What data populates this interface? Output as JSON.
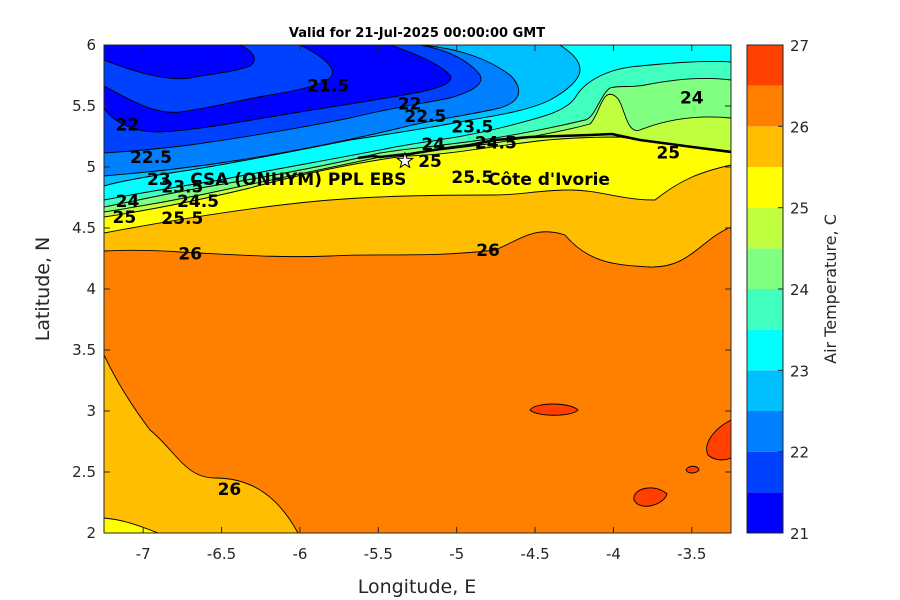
{
  "chart_data": {
    "type": "heatmap",
    "title": "Valid for 21-Jul-2025 00:00:00 GMT",
    "xlabel": "Longitude, E",
    "ylabel": "Latitude, N",
    "xlim": [
      -7.25,
      -3.25
    ],
    "ylim": [
      2,
      6
    ],
    "xticks": [
      "-7",
      "-6.5",
      "-6",
      "-5.5",
      "-5",
      "-4.5",
      "-4",
      "-3.5"
    ],
    "xtick_values": [
      -7,
      -6.5,
      -6,
      -5.5,
      -5,
      -4.5,
      -4,
      -3.5
    ],
    "yticks": [
      "2",
      "2.5",
      "3",
      "3.5",
      "4",
      "4.5",
      "5",
      "5.5",
      "6"
    ],
    "ytick_values": [
      2,
      2.5,
      3,
      3.5,
      4,
      4.5,
      5,
      5.5,
      6
    ],
    "colorbar": {
      "label": "Air Temperature, C",
      "range": [
        21,
        27
      ],
      "ticks": [
        "21",
        "22",
        "23",
        "24",
        "25",
        "26",
        "27"
      ],
      "tick_values": [
        21,
        22,
        23,
        24,
        25,
        26,
        27
      ],
      "levels": [
        21,
        21.5,
        22,
        22.5,
        23,
        23.5,
        24,
        24.5,
        25,
        25.5,
        26,
        26.5,
        27
      ],
      "colors": [
        "#0000ff",
        "#0040ff",
        "#0080ff",
        "#00bfff",
        "#00ffff",
        "#40ffbf",
        "#80ff80",
        "#bfff40",
        "#ffff00",
        "#ffbf00",
        "#ff8000",
        "#ff4000"
      ]
    },
    "contour_labels": [
      {
        "text": "21.5",
        "lon": -5.82,
        "lat": 5.67
      },
      {
        "text": "22",
        "lon": -7.1,
        "lat": 5.35
      },
      {
        "text": "22",
        "lon": -5.3,
        "lat": 5.52
      },
      {
        "text": "22.5",
        "lon": -5.2,
        "lat": 5.42
      },
      {
        "text": "22.5",
        "lon": -6.95,
        "lat": 5.08
      },
      {
        "text": "23.5",
        "lon": -4.9,
        "lat": 5.33
      },
      {
        "text": "24",
        "lon": -3.5,
        "lat": 5.57
      },
      {
        "text": "24",
        "lon": -5.15,
        "lat": 5.19
      },
      {
        "text": "24.5",
        "lon": -4.75,
        "lat": 5.2
      },
      {
        "text": "25",
        "lon": -5.17,
        "lat": 5.05
      },
      {
        "text": "25",
        "lon": -3.65,
        "lat": 5.12
      },
      {
        "text": "25.5",
        "lon": -4.9,
        "lat": 4.92
      },
      {
        "text": "23",
        "lon": -6.9,
        "lat": 4.9
      },
      {
        "text": "23.5",
        "lon": -6.75,
        "lat": 4.84
      },
      {
        "text": "24",
        "lon": -7.1,
        "lat": 4.72
      },
      {
        "text": "24.5",
        "lon": -6.65,
        "lat": 4.72
      },
      {
        "text": "25",
        "lon": -7.12,
        "lat": 4.59
      },
      {
        "text": "25.5",
        "lon": -6.75,
        "lat": 4.58
      },
      {
        "text": "26",
        "lon": -6.7,
        "lat": 4.29
      },
      {
        "text": "26",
        "lon": -4.8,
        "lat": 4.32
      },
      {
        "text": "26",
        "lon": -6.45,
        "lat": 2.36
      }
    ],
    "annotations": [
      {
        "text": "CSA (ONHYM) PPL EBS",
        "lon": -6.7,
        "lat": 4.9
      },
      {
        "text": "Côte d'Ivorie",
        "lon": -4.8,
        "lat": 4.9
      }
    ],
    "marker": {
      "name": "star",
      "lon": -5.33,
      "lat": 5.05
    }
  }
}
